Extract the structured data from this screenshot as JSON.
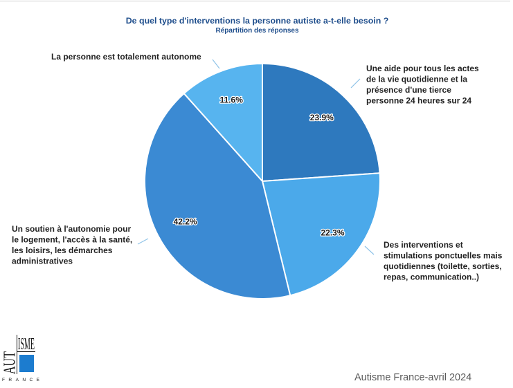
{
  "chart_data": {
    "type": "pie",
    "title": "De quel type d'interventions la personne autiste a-t-elle besoin ?",
    "subtitle": "Répartition des réponses",
    "slices": [
      {
        "label_lines": [
          "Une aide pour tous les actes",
          "de la vie quotidienne et la",
          "présence d'une tierce",
          "personne 24 heures sur 24"
        ],
        "value": 23.9,
        "value_label": "23.9%",
        "color": "#2e79be"
      },
      {
        "label_lines": [
          "Des interventions et",
          "stimulations ponctuelles mais",
          "quotidiennes (toilette, sorties,",
          "repas, communication..)"
        ],
        "value": 22.3,
        "value_label": "22.3%",
        "color": "#4ba9ea"
      },
      {
        "label_lines": [
          "Un soutien à l'autonomie pour",
          "le logement, l'accès à la santé,",
          "les loisirs, les démarches",
          "administratives"
        ],
        "value": 42.2,
        "value_label": "42.2%",
        "color": "#3b8ad3"
      },
      {
        "label_lines": [
          "La personne est totalement autonome"
        ],
        "value": 11.6,
        "value_label": "11.6%",
        "color": "#57b4ef"
      }
    ]
  },
  "colors": {
    "title": "#1f4e8c",
    "leader_line": "#8fc3e8",
    "logo_blue": "#1c7ccf",
    "footer": "#595959",
    "frame": "#cfcfcf"
  },
  "logo": {
    "top": "ISME",
    "side": "AUT",
    "bottom": "FRANCE"
  },
  "footer": {
    "source": "Autisme France-avril 2024"
  }
}
